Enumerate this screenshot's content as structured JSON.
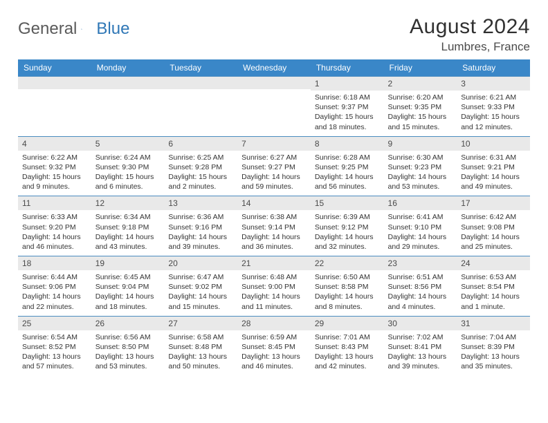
{
  "logo": {
    "text1": "General",
    "text2": "Blue"
  },
  "title": "August 2024",
  "location": "Lumbres, France",
  "colors": {
    "header_bg": "#3a87c8",
    "header_text": "#ffffff",
    "daynum_bg": "#e9e9e9",
    "row_border": "#4a8cc0",
    "text": "#333333",
    "logo_gray": "#5a5a5a",
    "logo_blue": "#2f77b6"
  },
  "day_headers": [
    "Sunday",
    "Monday",
    "Tuesday",
    "Wednesday",
    "Thursday",
    "Friday",
    "Saturday"
  ],
  "weeks": [
    [
      {
        "n": "",
        "lines": []
      },
      {
        "n": "",
        "lines": []
      },
      {
        "n": "",
        "lines": []
      },
      {
        "n": "",
        "lines": []
      },
      {
        "n": "1",
        "lines": [
          "Sunrise: 6:18 AM",
          "Sunset: 9:37 PM",
          "Daylight: 15 hours and 18 minutes."
        ]
      },
      {
        "n": "2",
        "lines": [
          "Sunrise: 6:20 AM",
          "Sunset: 9:35 PM",
          "Daylight: 15 hours and 15 minutes."
        ]
      },
      {
        "n": "3",
        "lines": [
          "Sunrise: 6:21 AM",
          "Sunset: 9:33 PM",
          "Daylight: 15 hours and 12 minutes."
        ]
      }
    ],
    [
      {
        "n": "4",
        "lines": [
          "Sunrise: 6:22 AM",
          "Sunset: 9:32 PM",
          "Daylight: 15 hours and 9 minutes."
        ]
      },
      {
        "n": "5",
        "lines": [
          "Sunrise: 6:24 AM",
          "Sunset: 9:30 PM",
          "Daylight: 15 hours and 6 minutes."
        ]
      },
      {
        "n": "6",
        "lines": [
          "Sunrise: 6:25 AM",
          "Sunset: 9:28 PM",
          "Daylight: 15 hours and 2 minutes."
        ]
      },
      {
        "n": "7",
        "lines": [
          "Sunrise: 6:27 AM",
          "Sunset: 9:27 PM",
          "Daylight: 14 hours and 59 minutes."
        ]
      },
      {
        "n": "8",
        "lines": [
          "Sunrise: 6:28 AM",
          "Sunset: 9:25 PM",
          "Daylight: 14 hours and 56 minutes."
        ]
      },
      {
        "n": "9",
        "lines": [
          "Sunrise: 6:30 AM",
          "Sunset: 9:23 PM",
          "Daylight: 14 hours and 53 minutes."
        ]
      },
      {
        "n": "10",
        "lines": [
          "Sunrise: 6:31 AM",
          "Sunset: 9:21 PM",
          "Daylight: 14 hours and 49 minutes."
        ]
      }
    ],
    [
      {
        "n": "11",
        "lines": [
          "Sunrise: 6:33 AM",
          "Sunset: 9:20 PM",
          "Daylight: 14 hours and 46 minutes."
        ]
      },
      {
        "n": "12",
        "lines": [
          "Sunrise: 6:34 AM",
          "Sunset: 9:18 PM",
          "Daylight: 14 hours and 43 minutes."
        ]
      },
      {
        "n": "13",
        "lines": [
          "Sunrise: 6:36 AM",
          "Sunset: 9:16 PM",
          "Daylight: 14 hours and 39 minutes."
        ]
      },
      {
        "n": "14",
        "lines": [
          "Sunrise: 6:38 AM",
          "Sunset: 9:14 PM",
          "Daylight: 14 hours and 36 minutes."
        ]
      },
      {
        "n": "15",
        "lines": [
          "Sunrise: 6:39 AM",
          "Sunset: 9:12 PM",
          "Daylight: 14 hours and 32 minutes."
        ]
      },
      {
        "n": "16",
        "lines": [
          "Sunrise: 6:41 AM",
          "Sunset: 9:10 PM",
          "Daylight: 14 hours and 29 minutes."
        ]
      },
      {
        "n": "17",
        "lines": [
          "Sunrise: 6:42 AM",
          "Sunset: 9:08 PM",
          "Daylight: 14 hours and 25 minutes."
        ]
      }
    ],
    [
      {
        "n": "18",
        "lines": [
          "Sunrise: 6:44 AM",
          "Sunset: 9:06 PM",
          "Daylight: 14 hours and 22 minutes."
        ]
      },
      {
        "n": "19",
        "lines": [
          "Sunrise: 6:45 AM",
          "Sunset: 9:04 PM",
          "Daylight: 14 hours and 18 minutes."
        ]
      },
      {
        "n": "20",
        "lines": [
          "Sunrise: 6:47 AM",
          "Sunset: 9:02 PM",
          "Daylight: 14 hours and 15 minutes."
        ]
      },
      {
        "n": "21",
        "lines": [
          "Sunrise: 6:48 AM",
          "Sunset: 9:00 PM",
          "Daylight: 14 hours and 11 minutes."
        ]
      },
      {
        "n": "22",
        "lines": [
          "Sunrise: 6:50 AM",
          "Sunset: 8:58 PM",
          "Daylight: 14 hours and 8 minutes."
        ]
      },
      {
        "n": "23",
        "lines": [
          "Sunrise: 6:51 AM",
          "Sunset: 8:56 PM",
          "Daylight: 14 hours and 4 minutes."
        ]
      },
      {
        "n": "24",
        "lines": [
          "Sunrise: 6:53 AM",
          "Sunset: 8:54 PM",
          "Daylight: 14 hours and 1 minute."
        ]
      }
    ],
    [
      {
        "n": "25",
        "lines": [
          "Sunrise: 6:54 AM",
          "Sunset: 8:52 PM",
          "Daylight: 13 hours and 57 minutes."
        ]
      },
      {
        "n": "26",
        "lines": [
          "Sunrise: 6:56 AM",
          "Sunset: 8:50 PM",
          "Daylight: 13 hours and 53 minutes."
        ]
      },
      {
        "n": "27",
        "lines": [
          "Sunrise: 6:58 AM",
          "Sunset: 8:48 PM",
          "Daylight: 13 hours and 50 minutes."
        ]
      },
      {
        "n": "28",
        "lines": [
          "Sunrise: 6:59 AM",
          "Sunset: 8:45 PM",
          "Daylight: 13 hours and 46 minutes."
        ]
      },
      {
        "n": "29",
        "lines": [
          "Sunrise: 7:01 AM",
          "Sunset: 8:43 PM",
          "Daylight: 13 hours and 42 minutes."
        ]
      },
      {
        "n": "30",
        "lines": [
          "Sunrise: 7:02 AM",
          "Sunset: 8:41 PM",
          "Daylight: 13 hours and 39 minutes."
        ]
      },
      {
        "n": "31",
        "lines": [
          "Sunrise: 7:04 AM",
          "Sunset: 8:39 PM",
          "Daylight: 13 hours and 35 minutes."
        ]
      }
    ]
  ]
}
